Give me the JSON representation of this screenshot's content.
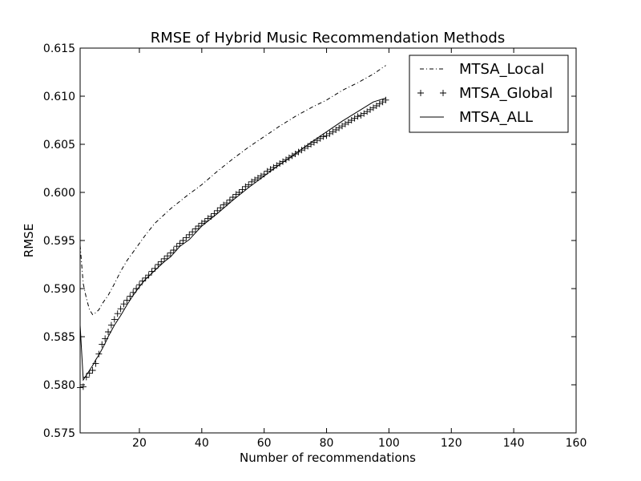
{
  "chart_data": {
    "type": "line",
    "title": "RMSE of Hybrid Music Recommendation Methods",
    "xlabel": "Number of recommendations",
    "ylabel": "RMSE",
    "xlim": [
      1,
      160
    ],
    "ylim": [
      0.575,
      0.615
    ],
    "xticks": [
      "20",
      "40",
      "60",
      "80",
      "100",
      "120",
      "140",
      "160"
    ],
    "xtick_values": [
      20,
      40,
      60,
      80,
      100,
      120,
      140,
      160
    ],
    "yticks": [
      "0.575",
      "0.580",
      "0.585",
      "0.590",
      "0.595",
      "0.600",
      "0.605",
      "0.610",
      "0.615"
    ],
    "ytick_values": [
      0.575,
      0.58,
      0.585,
      0.59,
      0.595,
      0.6,
      0.605,
      0.61,
      0.615
    ],
    "grid": false,
    "legend_position": "top-right",
    "series": [
      {
        "name": "MTSA_Local",
        "style": "dashdot",
        "x": [
          1,
          2,
          3,
          4,
          5,
          6,
          7,
          8,
          10,
          12,
          14,
          16,
          18,
          20,
          22,
          25,
          28,
          30,
          35,
          40,
          45,
          50,
          55,
          60,
          65,
          70,
          75,
          80,
          85,
          90,
          95,
          99
        ],
        "y": [
          0.5945,
          0.5905,
          0.589,
          0.5878,
          0.5873,
          0.5875,
          0.5878,
          0.5884,
          0.5893,
          0.5905,
          0.5918,
          0.5929,
          0.5938,
          0.5947,
          0.5956,
          0.5968,
          0.5977,
          0.5983,
          0.5996,
          0.6008,
          0.6022,
          0.6035,
          0.6047,
          0.6058,
          0.6069,
          0.6079,
          0.6088,
          0.6096,
          0.6106,
          0.6114,
          0.6123,
          0.6132
        ]
      },
      {
        "name": "MTSA_Global",
        "style": "plus",
        "x": [
          1,
          2,
          3,
          4,
          5,
          6,
          7,
          8,
          9,
          10,
          11,
          12,
          13,
          14,
          15,
          16,
          17,
          18,
          19,
          20,
          21,
          22,
          23,
          24,
          25,
          26,
          27,
          28,
          29,
          30,
          31,
          32,
          33,
          34,
          35,
          36,
          37,
          38,
          39,
          40,
          41,
          42,
          43,
          44,
          45,
          46,
          47,
          48,
          49,
          50,
          51,
          52,
          53,
          54,
          55,
          56,
          57,
          58,
          59,
          60,
          61,
          62,
          63,
          64,
          65,
          66,
          67,
          68,
          69,
          70,
          71,
          72,
          73,
          74,
          75,
          76,
          77,
          78,
          79,
          80,
          81,
          82,
          83,
          84,
          85,
          86,
          87,
          88,
          89,
          90,
          91,
          92,
          93,
          94,
          95,
          96,
          97,
          98,
          99
        ],
        "y": [
          0.5797,
          0.5798,
          0.5808,
          0.5812,
          0.5815,
          0.5822,
          0.5832,
          0.5842,
          0.5848,
          0.5855,
          0.5862,
          0.5868,
          0.5874,
          0.5879,
          0.5884,
          0.5888,
          0.5892,
          0.5896,
          0.59,
          0.5904,
          0.5908,
          0.5911,
          0.5914,
          0.5918,
          0.5921,
          0.5925,
          0.5928,
          0.5931,
          0.5934,
          0.5937,
          0.594,
          0.5944,
          0.5947,
          0.595,
          0.5953,
          0.5956,
          0.5959,
          0.5962,
          0.5965,
          0.5968,
          0.597,
          0.5973,
          0.5975,
          0.5978,
          0.5981,
          0.5984,
          0.5987,
          0.5989,
          0.5992,
          0.5995,
          0.5998,
          0.6,
          0.6003,
          0.6006,
          0.6008,
          0.6011,
          0.6013,
          0.6015,
          0.6017,
          0.6019,
          0.6022,
          0.6024,
          0.6026,
          0.6028,
          0.603,
          0.6032,
          0.6034,
          0.6036,
          0.6038,
          0.604,
          0.6042,
          0.6044,
          0.6046,
          0.6048,
          0.605,
          0.6052,
          0.6054,
          0.6056,
          0.6058,
          0.6059,
          0.6061,
          0.6063,
          0.6065,
          0.6067,
          0.6069,
          0.6071,
          0.6073,
          0.6075,
          0.6077,
          0.6079,
          0.608,
          0.6082,
          0.6084,
          0.6086,
          0.6088,
          0.609,
          0.6092,
          0.6094,
          0.6096
        ]
      },
      {
        "name": "MTSA_ALL",
        "style": "solid",
        "x": [
          1,
          2,
          3,
          4,
          5,
          6,
          7,
          8,
          9,
          10,
          12,
          14,
          16,
          18,
          20,
          22,
          25,
          28,
          30,
          33,
          36,
          40,
          45,
          50,
          55,
          60,
          65,
          70,
          75,
          80,
          85,
          90,
          95,
          99
        ],
        "y": [
          0.5862,
          0.5805,
          0.581,
          0.5815,
          0.582,
          0.5826,
          0.5831,
          0.5837,
          0.5843,
          0.585,
          0.5862,
          0.5872,
          0.5883,
          0.5893,
          0.5902,
          0.591,
          0.5919,
          0.5928,
          0.5933,
          0.5944,
          0.5951,
          0.5965,
          0.5978,
          0.5992,
          0.6005,
          0.6017,
          0.6029,
          0.604,
          0.6052,
          0.6063,
          0.6074,
          0.6084,
          0.6094,
          0.6098
        ]
      }
    ]
  }
}
